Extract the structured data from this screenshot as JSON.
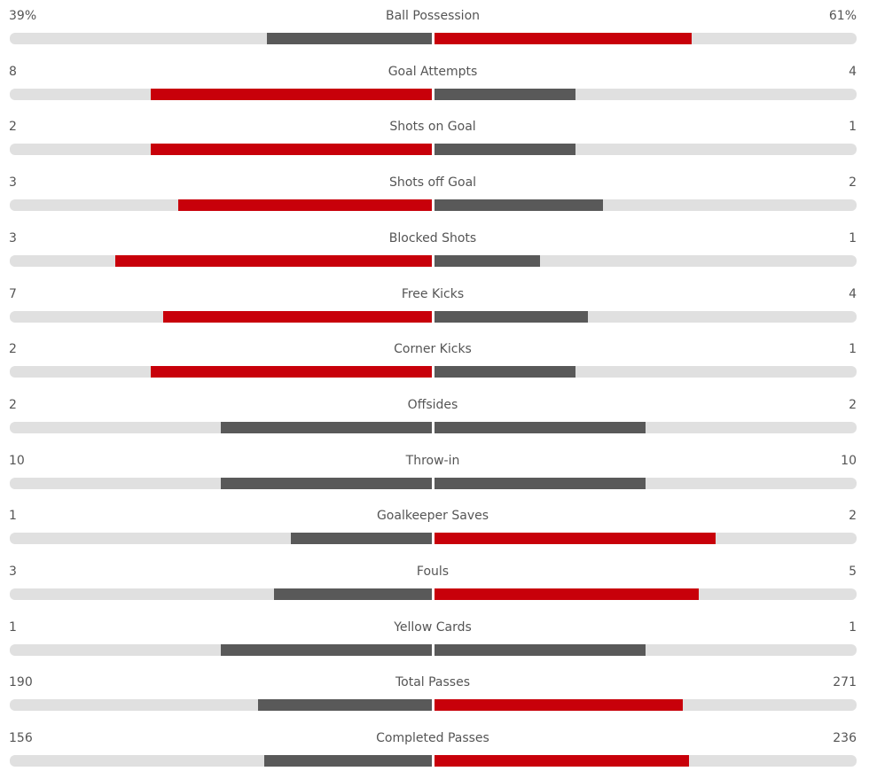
{
  "colors": {
    "leader": "#c8000a",
    "other": "#595959",
    "track": "#e0e0e0"
  },
  "stats": [
    {
      "label": "Ball Possession",
      "home": "39%",
      "away": "61%",
      "h": 39,
      "a": 61
    },
    {
      "label": "Goal Attempts",
      "home": "8",
      "away": "4",
      "h": 8,
      "a": 4
    },
    {
      "label": "Shots on Goal",
      "home": "2",
      "away": "1",
      "h": 2,
      "a": 1
    },
    {
      "label": "Shots off Goal",
      "home": "3",
      "away": "2",
      "h": 3,
      "a": 2
    },
    {
      "label": "Blocked Shots",
      "home": "3",
      "away": "1",
      "h": 3,
      "a": 1
    },
    {
      "label": "Free Kicks",
      "home": "7",
      "away": "4",
      "h": 7,
      "a": 4
    },
    {
      "label": "Corner Kicks",
      "home": "2",
      "away": "1",
      "h": 2,
      "a": 1
    },
    {
      "label": "Offsides",
      "home": "2",
      "away": "2",
      "h": 2,
      "a": 2
    },
    {
      "label": "Throw-in",
      "home": "10",
      "away": "10",
      "h": 10,
      "a": 10
    },
    {
      "label": "Goalkeeper Saves",
      "home": "1",
      "away": "2",
      "h": 1,
      "a": 2
    },
    {
      "label": "Fouls",
      "home": "3",
      "away": "5",
      "h": 3,
      "a": 5
    },
    {
      "label": "Yellow Cards",
      "home": "1",
      "away": "1",
      "h": 1,
      "a": 1
    },
    {
      "label": "Total Passes",
      "home": "190",
      "away": "271",
      "h": 190,
      "a": 271
    },
    {
      "label": "Completed Passes",
      "home": "156",
      "away": "236",
      "h": 156,
      "a": 236
    }
  ]
}
